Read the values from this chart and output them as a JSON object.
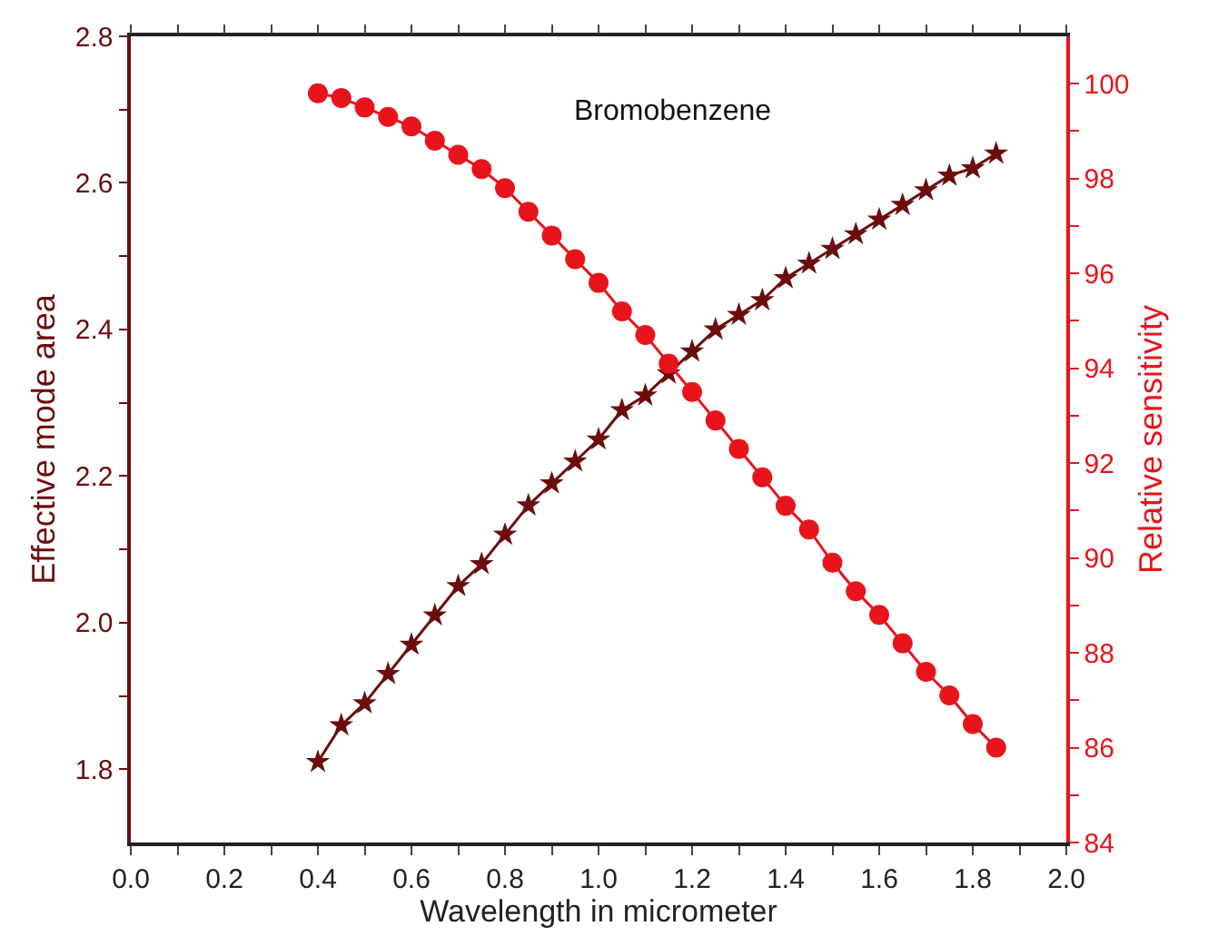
{
  "chart_data": {
    "type": "line",
    "xlabel": "Wavelength in micrometer",
    "ylabel": "Effective mode area",
    "y2label": "Relative sensitivity",
    "annotations": [
      "Bromobenzene"
    ],
    "x": [
      0.4,
      0.45,
      0.5,
      0.55,
      0.6,
      0.65,
      0.7,
      0.75,
      0.8,
      0.85,
      0.9,
      0.95,
      1.0,
      1.05,
      1.1,
      1.15,
      1.2,
      1.25,
      1.3,
      1.35,
      1.4,
      1.45,
      1.5,
      1.55,
      1.6,
      1.65,
      1.7,
      1.75,
      1.8,
      1.85
    ],
    "series": [
      {
        "color": "#6b0d0d",
        "marker": "star",
        "values": [
          1.81,
          1.86,
          1.89,
          1.93,
          1.97,
          2.01,
          2.05,
          2.08,
          2.12,
          2.16,
          2.19,
          2.22,
          2.25,
          2.29,
          2.31,
          2.34,
          2.37,
          2.4,
          2.42,
          2.44,
          2.47,
          2.49,
          2.51,
          2.53,
          2.55,
          2.57,
          2.59,
          2.61,
          2.62,
          2.64
        ]
      },
      {
        "color": "#e8141b",
        "marker": "circle",
        "axis": "y2",
        "values": [
          99.8,
          99.7,
          99.5,
          99.3,
          99.1,
          98.8,
          98.5,
          98.2,
          97.8,
          97.3,
          96.8,
          96.3,
          95.8,
          95.2,
          94.7,
          94.1,
          93.5,
          92.9,
          92.3,
          91.7,
          91.1,
          90.6,
          89.9,
          89.3,
          88.8,
          88.2,
          87.6,
          87.1,
          86.5,
          86.0
        ]
      }
    ],
    "xlim": [
      0,
      2.0
    ],
    "xticks": [
      {
        "value": 0,
        "label": "0.0"
      },
      {
        "value": 0.1,
        "label": null
      },
      0.2,
      {
        "value": 0.3,
        "label": null
      },
      0.4,
      {
        "value": 0.5,
        "label": null
      },
      0.6,
      {
        "value": 0.7,
        "label": null
      },
      0.8,
      {
        "value": 0.9,
        "label": null
      },
      {
        "value": 1.0,
        "label": "1.0"
      },
      {
        "value": 1.1,
        "label": null
      },
      1.2,
      {
        "value": 1.3,
        "label": null
      },
      1.4,
      {
        "value": 1.5,
        "label": null
      },
      1.6,
      {
        "value": 1.7,
        "label": null
      },
      1.8,
      {
        "value": 1.9,
        "label": null
      },
      {
        "value": 2.0,
        "label": "2.0"
      }
    ],
    "ylim": [
      1.7,
      2.8
    ],
    "yticks": [
      1.8,
      {
        "value": 1.9,
        "label": null
      },
      {
        "value": 2.0,
        "label": "2.0"
      },
      {
        "value": 2.1,
        "label": null
      },
      2.2,
      {
        "value": 2.3,
        "label": null
      },
      2.4,
      {
        "value": 2.5,
        "label": null
      },
      2.6,
      {
        "value": 2.7,
        "label": null
      },
      2.8
    ],
    "y2lim": [
      84,
      101
    ],
    "y2ticks": [
      84,
      {
        "value": 85,
        "label": null
      },
      86,
      {
        "value": 87,
        "label": null
      },
      88,
      {
        "value": 89,
        "label": null
      },
      90,
      {
        "value": 91,
        "label": null
      },
      92,
      {
        "value": 93,
        "label": null
      },
      94,
      {
        "value": 95,
        "label": null
      },
      96,
      {
        "value": 97,
        "label": null
      },
      98,
      {
        "value": 99,
        "label": null
      },
      100
    ],
    "line_style": "solid",
    "grid": false,
    "legend": false
  }
}
